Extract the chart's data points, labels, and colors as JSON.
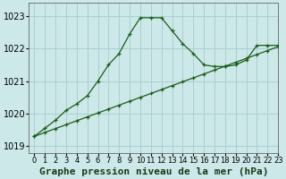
{
  "title": "Graphe pression niveau de la mer (hPa)",
  "bg_color": "#cce8e8",
  "grid_color": "#aad0d0",
  "line_color": "#1a5c1a",
  "xlim": [
    -0.5,
    23
  ],
  "ylim": [
    1018.8,
    1023.4
  ],
  "xticks": [
    0,
    1,
    2,
    3,
    4,
    5,
    6,
    7,
    8,
    9,
    10,
    11,
    12,
    13,
    14,
    15,
    16,
    17,
    18,
    19,
    20,
    21,
    22,
    23
  ],
  "yticks": [
    1019,
    1020,
    1021,
    1022,
    1023
  ],
  "series1_x": [
    0,
    1,
    2,
    3,
    4,
    5,
    6,
    7,
    8,
    9,
    10,
    11,
    12,
    13,
    14,
    15,
    16,
    17,
    18,
    19,
    20,
    21,
    22,
    23
  ],
  "series1_y": [
    1019.3,
    1019.55,
    1019.8,
    1020.1,
    1020.3,
    1020.55,
    1021.0,
    1021.5,
    1021.85,
    1022.45,
    1022.95,
    1022.95,
    1022.95,
    1022.55,
    1022.15,
    1021.85,
    1021.5,
    1021.45,
    1021.45,
    1021.5,
    1021.65,
    1022.1,
    1022.1,
    1022.1
  ],
  "series2_x": [
    0,
    1,
    2,
    3,
    4,
    5,
    6,
    7,
    8,
    9,
    10,
    11,
    12,
    13,
    14,
    15,
    16,
    17,
    18,
    19,
    20,
    21,
    22,
    23
  ],
  "series2_y": [
    1019.3,
    1019.42,
    1019.54,
    1019.66,
    1019.78,
    1019.9,
    1020.02,
    1020.14,
    1020.26,
    1020.38,
    1020.5,
    1020.62,
    1020.74,
    1020.86,
    1020.98,
    1021.1,
    1021.22,
    1021.34,
    1021.46,
    1021.58,
    1021.7,
    1021.82,
    1021.94,
    1022.06
  ],
  "title_fontsize": 8,
  "xtick_fontsize": 6,
  "ytick_fontsize": 7
}
